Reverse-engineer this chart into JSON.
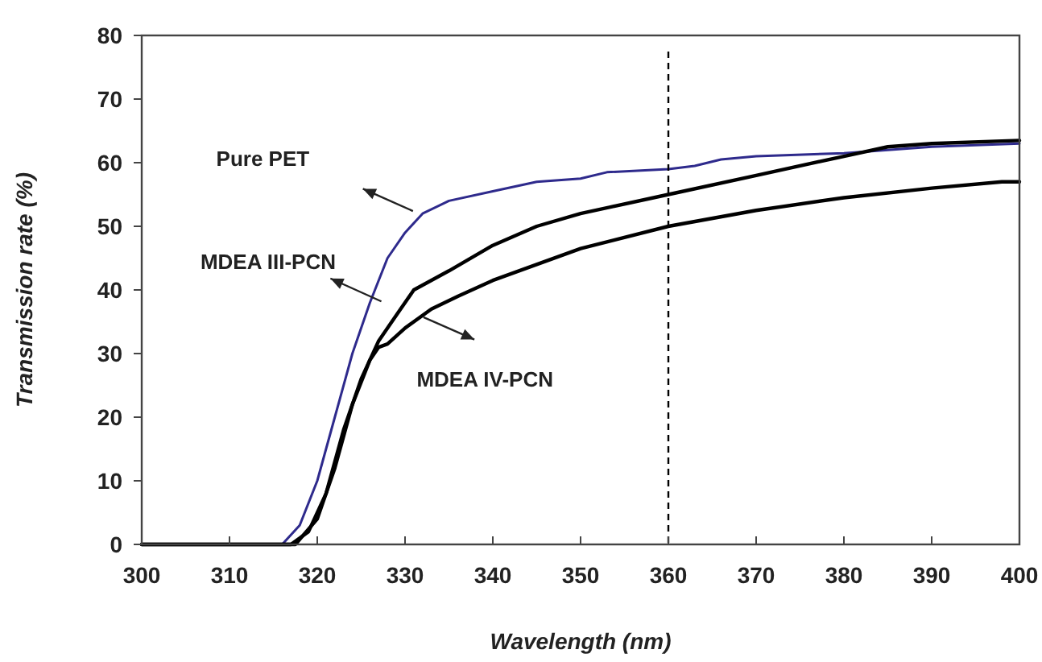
{
  "chart_data": {
    "type": "line",
    "xlabel": "Wavelength (nm)",
    "ylabel": "Transmission rate (%)",
    "xlim": [
      300,
      400
    ],
    "ylim": [
      0,
      80
    ],
    "xticks": [
      300,
      310,
      320,
      330,
      340,
      350,
      360,
      370,
      380,
      390,
      400
    ],
    "yticks": [
      0,
      10,
      20,
      30,
      40,
      50,
      60,
      70,
      80
    ],
    "grid": false,
    "marker": "none",
    "line_style": "solid",
    "annotations": [
      "Pure PET",
      "MDEA III-PCN",
      "MDEA IV-PCN"
    ],
    "ref_lines": [
      {
        "axis": "x",
        "value": 360,
        "line_style": "dashed",
        "color": "#000000"
      }
    ],
    "series": [
      {
        "color": "#2e2a8c",
        "x": [
          300,
          316,
          318,
          320,
          322,
          324,
          326,
          328,
          330,
          332,
          335,
          340,
          345,
          350,
          353,
          360,
          363,
          366,
          370,
          380,
          390,
          400
        ],
        "values": [
          0,
          0,
          3,
          10,
          20,
          30,
          38,
          45,
          49,
          52,
          54,
          55.5,
          57,
          57.5,
          58.5,
          59,
          59.5,
          60.5,
          61,
          61.5,
          62.5,
          63
        ]
      },
      {
        "color": "#000000",
        "x": [
          300,
          317,
          319,
          321,
          323,
          325,
          327,
          329,
          331,
          335,
          340,
          345,
          350,
          360,
          370,
          380,
          385,
          390,
          400
        ],
        "values": [
          0,
          0,
          2,
          8,
          18,
          26,
          32,
          36,
          40,
          43,
          47,
          50,
          52,
          55,
          58,
          61,
          62.5,
          63,
          63.5
        ]
      },
      {
        "color": "#000000",
        "x": [
          300,
          317.5,
          320,
          322,
          324,
          326,
          327,
          328,
          330,
          333,
          336,
          340,
          345,
          350,
          360,
          370,
          380,
          390,
          398,
          400
        ],
        "values": [
          0,
          0,
          4,
          12,
          22,
          29,
          31,
          31.5,
          34,
          37,
          39,
          41.5,
          44,
          46.5,
          50,
          52.5,
          54.5,
          56,
          57,
          57
        ]
      }
    ]
  }
}
